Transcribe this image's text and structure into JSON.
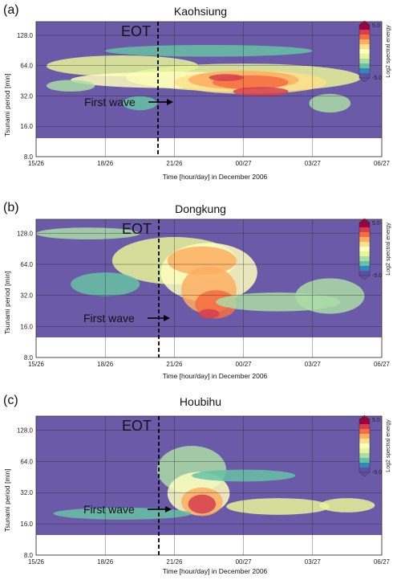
{
  "chart_data": [
    {
      "type": "heatmap",
      "panel_label": "(a)",
      "title": "Kaohsiung",
      "xlabel": "Time [hour/day] in December 2006",
      "ylabel": "Tsunami period [min]",
      "x_ticks": [
        "15/26",
        "18/26",
        "21/26",
        "00/27",
        "03/27",
        "06/27"
      ],
      "y_ticks": [
        "8.0",
        "16.0",
        "32.0",
        "64.0",
        "128.0"
      ],
      "y_scale": "log2",
      "colorbar_label": "Log2 spectral energy",
      "colorbar_range": [
        "5.0",
        "-5.0"
      ],
      "annotations": {
        "eot": "EOT",
        "first_wave": "First wave"
      }
    },
    {
      "type": "heatmap",
      "panel_label": "(b)",
      "title": "Dongkung",
      "xlabel": "Time [hour/day] in December 2006",
      "ylabel": "Tsunami period [min]",
      "x_ticks": [
        "15/26",
        "18/26",
        "21/26",
        "00/27",
        "03/27",
        "06/27"
      ],
      "y_ticks": [
        "8.0",
        "16.0",
        "32.0",
        "64.0",
        "128.0"
      ],
      "y_scale": "log2",
      "colorbar_label": "Log2 spectral energy",
      "colorbar_range": [
        "5.0",
        "-5.0"
      ],
      "annotations": {
        "eot": "EOT",
        "first_wave": "First wave"
      }
    },
    {
      "type": "heatmap",
      "panel_label": "(c)",
      "title": "Houbihu",
      "xlabel": "Time [hour/day] in December 2006",
      "ylabel": "Tsunami period [min]",
      "x_ticks": [
        "15/26",
        "18/26",
        "21/26",
        "00/27",
        "03/27",
        "06/27"
      ],
      "y_ticks": [
        "8.0",
        "16.0",
        "32.0",
        "64.0",
        "128.0"
      ],
      "y_scale": "log2",
      "colorbar_label": "Log2 spectral energy",
      "colorbar_range": [
        "5.0",
        "-5.0"
      ],
      "annotations": {
        "eot": "EOT",
        "first_wave": "First wave"
      }
    }
  ],
  "colormap": [
    "#9e0142",
    "#d53e4f",
    "#f46d43",
    "#fdae61",
    "#fee08b",
    "#ffffbf",
    "#e6f598",
    "#abdda4",
    "#66c2a5",
    "#3288bd",
    "#5e4fa2"
  ],
  "background_color": "#6a5aa8"
}
